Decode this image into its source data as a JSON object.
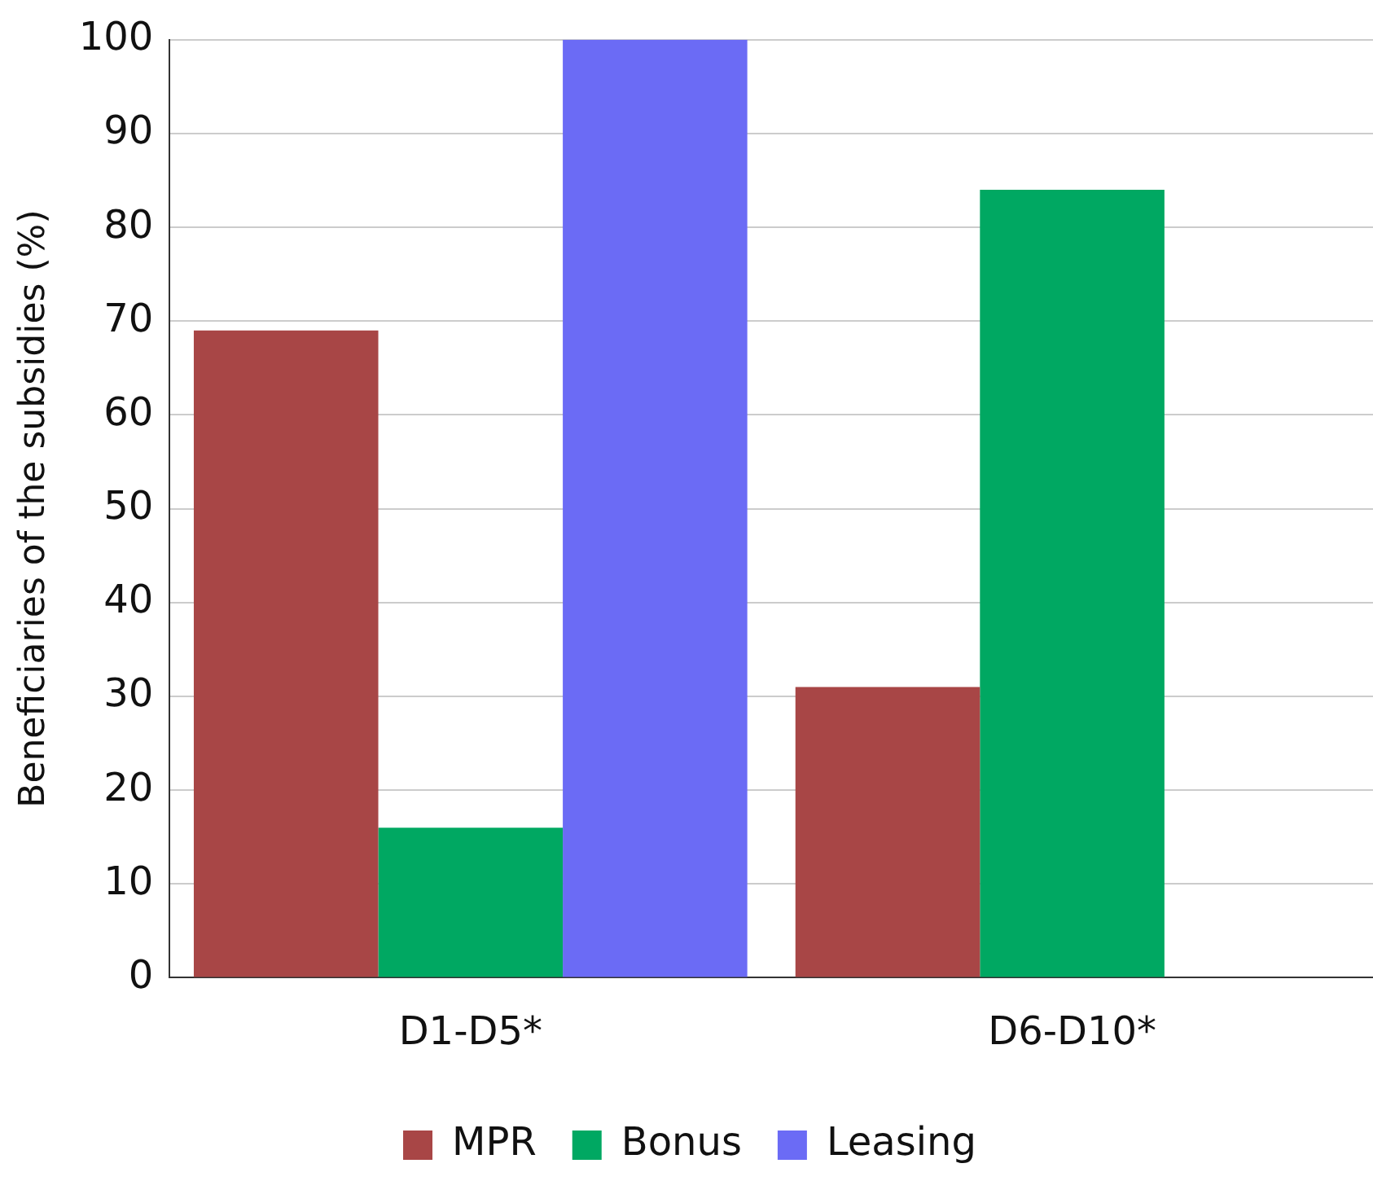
{
  "chart_data": {
    "type": "bar",
    "ylabel": "Beneficiaries of the subsidies (%)",
    "categories": [
      "D1-D5*",
      "D6-D10*"
    ],
    "series": [
      {
        "name": "MPR",
        "color": "#a84646",
        "values": [
          69,
          31
        ]
      },
      {
        "name": "Bonus",
        "color": "#00a862",
        "values": [
          16,
          84
        ]
      },
      {
        "name": "Leasing",
        "color": "#6b6bf5",
        "values": [
          100,
          0
        ]
      }
    ],
    "ylim": [
      0,
      100
    ],
    "yticks": [
      0,
      10,
      20,
      30,
      40,
      50,
      60,
      70,
      80,
      90,
      100
    ],
    "grid": "y",
    "legend": "bottom"
  }
}
